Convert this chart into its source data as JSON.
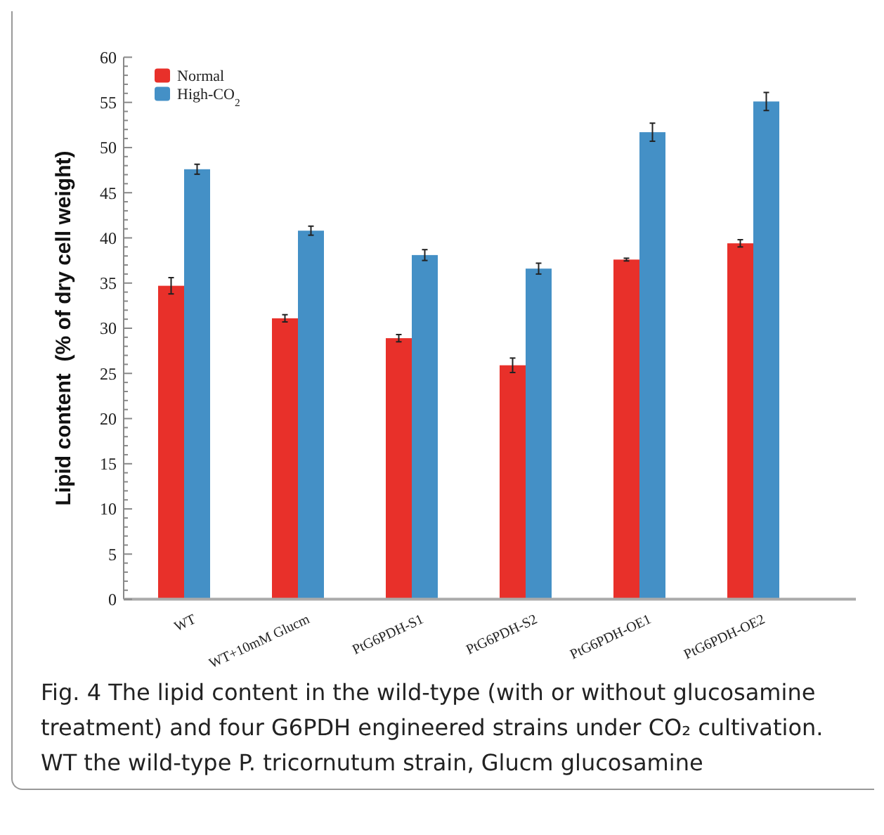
{
  "chart_data": {
    "type": "bar",
    "ylabel": "Lipid content  (% of dry cell weight)",
    "categories": [
      "WT",
      "WT+10mM Glucm",
      "PtG6PDH-S1",
      "PtG6PDH-S2",
      "PtG6PDH-OE1",
      "PtG6PDH-OE2"
    ],
    "series": [
      {
        "name": "Normal",
        "color": "#e8302a",
        "values": [
          34.7,
          31.1,
          28.9,
          25.9,
          37.6,
          39.4
        ],
        "errors": [
          0.9,
          0.4,
          0.4,
          0.8,
          0.15,
          0.4
        ]
      },
      {
        "name": "High-CO$_{2}$",
        "color": "#4490c6",
        "values": [
          47.6,
          40.8,
          38.1,
          36.6,
          51.7,
          55.1
        ],
        "errors": [
          0.55,
          0.5,
          0.6,
          0.6,
          1.0,
          1.0
        ]
      }
    ],
    "ylim": [
      0,
      60
    ],
    "yticks": [
      0,
      {
        "value": 1,
        "label": null
      },
      {
        "value": 2,
        "label": null
      },
      {
        "value": 3,
        "label": null
      },
      {
        "value": 4,
        "label": null
      },
      5,
      {
        "value": 6,
        "label": null
      },
      {
        "value": 7,
        "label": null
      },
      {
        "value": 8,
        "label": null
      },
      {
        "value": 9,
        "label": null
      },
      10,
      {
        "value": 11,
        "label": null
      },
      {
        "value": 12,
        "label": null
      },
      {
        "value": 13,
        "label": null
      },
      {
        "value": 14,
        "label": null
      },
      15,
      {
        "value": 16,
        "label": null
      },
      {
        "value": 17,
        "label": null
      },
      {
        "value": 18,
        "label": null
      },
      {
        "value": 19,
        "label": null
      },
      20,
      {
        "value": 21,
        "label": null
      },
      {
        "value": 22,
        "label": null
      },
      {
        "value": 23,
        "label": null
      },
      {
        "value": 24,
        "label": null
      },
      25,
      {
        "value": 26,
        "label": null
      },
      {
        "value": 27,
        "label": null
      },
      {
        "value": 28,
        "label": null
      },
      {
        "value": 29,
        "label": null
      },
      30,
      {
        "value": 31,
        "label": null
      },
      {
        "value": 32,
        "label": null
      },
      {
        "value": 33,
        "label": null
      },
      {
        "value": 34,
        "label": null
      },
      35,
      {
        "value": 36,
        "label": null
      },
      {
        "value": 37,
        "label": null
      },
      {
        "value": 38,
        "label": null
      },
      {
        "value": 39,
        "label": null
      },
      40,
      {
        "value": 41,
        "label": null
      },
      {
        "value": 42,
        "label": null
      },
      {
        "value": 43,
        "label": null
      },
      {
        "value": 44,
        "label": null
      },
      45,
      {
        "value": 46,
        "label": null
      },
      {
        "value": 47,
        "label": null
      },
      {
        "value": 48,
        "label": null
      },
      {
        "value": 49,
        "label": null
      },
      50,
      {
        "value": 51,
        "label": null
      },
      {
        "value": 52,
        "label": null
      },
      {
        "value": 53,
        "label": null
      },
      {
        "value": 54,
        "label": null
      },
      55,
      {
        "value": 56,
        "label": null
      },
      {
        "value": 57,
        "label": null
      },
      {
        "value": 58,
        "label": null
      },
      {
        "value": 59,
        "label": null
      },
      60
    ],
    "legend": "top left",
    "grid": false,
    "annotations": [
      "Fig. 4 The lipid content in the wild-type (with or without glucosamine treatment) and four G6PDH engineered strains under CO₂ cultivation. WT the wild-type P. tricornutum strain, Glucm glucosamine"
    ]
  }
}
